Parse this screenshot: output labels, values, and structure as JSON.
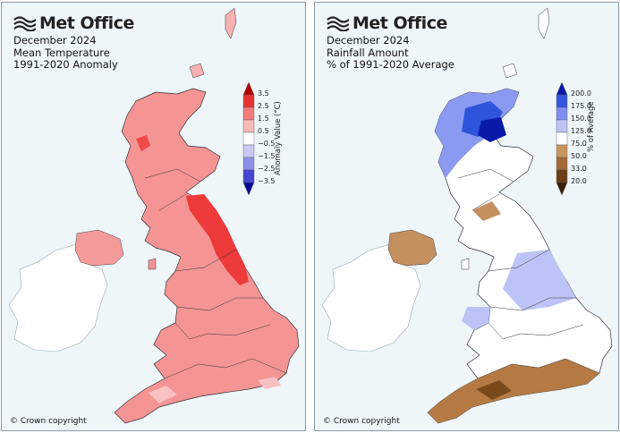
{
  "logo": {
    "text": "Met Office",
    "icon": "met-office-waves-icon"
  },
  "copyright": "© Crown copyright",
  "panels": [
    {
      "title_lines": [
        "December 2024",
        "Mean Temperature",
        "1991-2020 Anomaly"
      ],
      "colorbar": {
        "title": "Anomaly Value (°C)",
        "ticks": [
          "3.5",
          "2.5",
          "1.5",
          "0.5",
          "−0.5",
          "−1.5",
          "−2.5",
          "−3.5"
        ],
        "colors": [
          "#b30000",
          "#e63232",
          "#f47a7a",
          "#f9b8b8",
          "#ffffff",
          "#c8c8f5",
          "#8f8fe8",
          "#4646d2",
          "#0a0a9a"
        ]
      }
    },
    {
      "title_lines": [
        "December 2024",
        "Rainfall Amount",
        "% of 1991-2020 Average"
      ],
      "colorbar": {
        "title": "% of Average",
        "ticks": [
          "200.0",
          "175.0",
          "150.0",
          "125.0",
          "75.0",
          "50.0",
          "33.0",
          "20.0"
        ],
        "colors": [
          "#0a1aa8",
          "#3355e0",
          "#7d8ef0",
          "#bcc4f7",
          "#ffffff",
          "#c9955e",
          "#a36a35",
          "#6e3f17",
          "#3e1f08"
        ]
      }
    }
  ]
}
